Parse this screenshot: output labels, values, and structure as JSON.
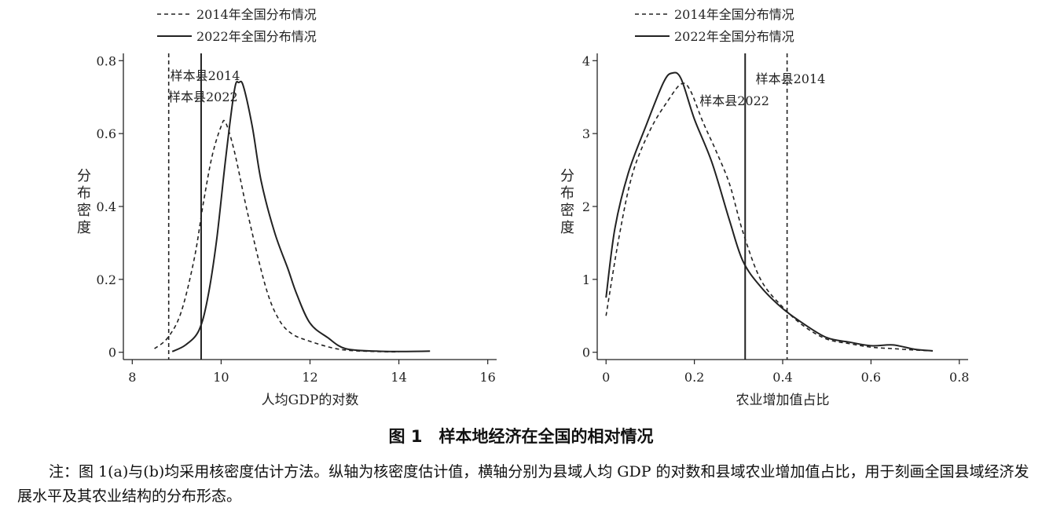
{
  "chart_data": [
    {
      "type": "line",
      "xlabel": "人均GDP的对数",
      "ylabel": "分布密度",
      "xlim": [
        7.8,
        16.2
      ],
      "ylim": [
        -0.02,
        0.82
      ],
      "xticks": [
        8,
        10,
        12,
        14,
        16
      ],
      "xtick_labels": [
        "8",
        "10",
        "12",
        "14",
        "16"
      ],
      "yticks": [
        0,
        0.2,
        0.4,
        0.6,
        0.8
      ],
      "ytick_labels": [
        "0",
        "0.2",
        "0.4",
        "0.6",
        "0.8"
      ],
      "legend": {
        "position": "top-left"
      },
      "series": [
        {
          "name": "2014年全国分布情况",
          "style": "dashed",
          "x": [
            8.5,
            8.8,
            9.1,
            9.4,
            9.6,
            9.8,
            10.0,
            10.1,
            10.3,
            10.6,
            11.0,
            11.3,
            11.6,
            12.0,
            12.5,
            12.9,
            13.5,
            14.0
          ],
          "y": [
            0.01,
            0.04,
            0.11,
            0.26,
            0.41,
            0.54,
            0.62,
            0.63,
            0.55,
            0.38,
            0.18,
            0.09,
            0.05,
            0.03,
            0.012,
            0.005,
            0.002,
            0.001
          ]
        },
        {
          "name": "2022年全国分布情况",
          "style": "solid",
          "x": [
            8.9,
            9.2,
            9.5,
            9.7,
            9.9,
            10.1,
            10.3,
            10.4,
            10.5,
            10.7,
            10.9,
            11.2,
            11.5,
            11.7,
            12.0,
            12.4,
            12.8,
            13.5,
            14.0,
            14.7
          ],
          "y": [
            0.002,
            0.02,
            0.06,
            0.15,
            0.31,
            0.53,
            0.72,
            0.74,
            0.73,
            0.62,
            0.47,
            0.33,
            0.23,
            0.16,
            0.08,
            0.04,
            0.01,
            0.003,
            0.002,
            0.003
          ]
        }
      ],
      "reference_lines": [
        {
          "label": "样本县2014",
          "x": 8.82,
          "style": "dashed"
        },
        {
          "label": "样本县2022",
          "x": 9.55,
          "style": "solid"
        }
      ]
    },
    {
      "type": "line",
      "xlabel": "农业增加值占比",
      "ylabel": "分布密度",
      "xlim": [
        -0.02,
        0.82
      ],
      "ylim": [
        -0.1,
        4.1
      ],
      "xticks": [
        0,
        0.2,
        0.4,
        0.6,
        0.8
      ],
      "xtick_labels": [
        "0",
        "0.2",
        "0.4",
        "0.6",
        "0.8"
      ],
      "yticks": [
        0,
        1,
        2,
        3,
        4
      ],
      "ytick_labels": [
        "0",
        "1",
        "2",
        "3",
        "4"
      ],
      "legend": {
        "position": "top-left"
      },
      "series": [
        {
          "name": "2014年全国分布情况",
          "style": "dashed",
          "x": [
            0,
            0.03,
            0.06,
            0.1,
            0.14,
            0.17,
            0.19,
            0.22,
            0.25,
            0.28,
            0.31,
            0.35,
            0.4,
            0.45,
            0.5,
            0.55,
            0.6,
            0.65,
            0.7,
            0.74
          ],
          "y": [
            0.5,
            1.6,
            2.45,
            3.05,
            3.45,
            3.68,
            3.6,
            3.15,
            2.75,
            2.3,
            1.65,
            1.0,
            0.62,
            0.35,
            0.18,
            0.12,
            0.07,
            0.05,
            0.03,
            0.02
          ]
        },
        {
          "name": "2022年全国分布情况",
          "style": "solid",
          "x": [
            0,
            0.02,
            0.05,
            0.09,
            0.13,
            0.15,
            0.17,
            0.2,
            0.24,
            0.28,
            0.31,
            0.35,
            0.4,
            0.45,
            0.5,
            0.55,
            0.6,
            0.65,
            0.7,
            0.74
          ],
          "y": [
            0.75,
            1.7,
            2.45,
            3.1,
            3.7,
            3.83,
            3.75,
            3.2,
            2.6,
            1.8,
            1.25,
            0.9,
            0.6,
            0.38,
            0.2,
            0.14,
            0.09,
            0.1,
            0.04,
            0.02
          ]
        }
      ],
      "reference_lines": [
        {
          "label": "样本县2022",
          "x": 0.315,
          "style": "solid"
        },
        {
          "label": "样本县2014",
          "x": 0.41,
          "style": "dashed"
        }
      ]
    }
  ],
  "caption": "图 1　样本地经济在全国的相对情况",
  "note": "注：图 1(a)与(b)均采用核密度估计方法。纵轴为核密度估计值，横轴分别为县域人均 GDP 的对数和县域农业增加值占比，用于刻画全国县域经济发展水平及其农业结构的分布形态。"
}
